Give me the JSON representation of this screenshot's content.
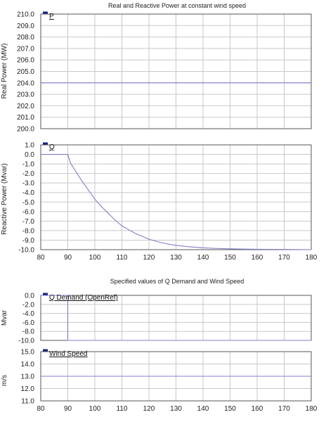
{
  "figure_titles": {
    "top": "Real and Reactive Power at constant wind speed",
    "bottom": "Specified values of Q Demand and Wind Speed"
  },
  "chart_data": [
    {
      "type": "line",
      "title": "Real and Reactive Power at constant wind speed",
      "xlabel": "",
      "ylabel": "Real Power (MW)",
      "xlim": [
        80,
        180
      ],
      "ylim": [
        200.0,
        210.0
      ],
      "y_ticks": [
        "210.0",
        "209.0",
        "208.0",
        "207.0",
        "206.0",
        "205.0",
        "204.0",
        "203.0",
        "202.0",
        "201.0",
        "200.0"
      ],
      "x_ticks": [],
      "grid": true,
      "legend": "top-left",
      "series": [
        {
          "name": "P",
          "color": "#7f7fc8",
          "legend_color": "#1a237e",
          "x": [
            80,
            180
          ],
          "y": [
            204.0,
            204.0
          ]
        }
      ]
    },
    {
      "type": "line",
      "title": "",
      "xlabel": "",
      "ylabel": "Reactive Power (Mvar)",
      "xlim": [
        80,
        180
      ],
      "ylim": [
        -10.5,
        1.0
      ],
      "y_ticks": [
        "1.0",
        "0.0",
        "-1.0",
        "-2.0",
        "-3.0",
        "-4.0",
        "-5.0",
        "-6.0",
        "-7.0",
        "-8.0",
        "-9.0",
        "-10.0"
      ],
      "x_ticks": [
        "80",
        "90",
        "100",
        "110",
        "120",
        "130",
        "140",
        "150",
        "160",
        "170",
        "180"
      ],
      "grid": true,
      "legend": "top-left",
      "series": [
        {
          "name": "Q",
          "color": "#7f7fc8",
          "legend_color": "#1a237e",
          "x": [
            80,
            90,
            91,
            93,
            95,
            97.5,
            100,
            102.5,
            105,
            107.5,
            110,
            112.5,
            115,
            117.5,
            120,
            125,
            130,
            135,
            140,
            145,
            150,
            155,
            160,
            170,
            180
          ],
          "y": [
            0.0,
            0.0,
            -0.9,
            -1.8,
            -2.7,
            -3.7,
            -4.7,
            -5.5,
            -6.2,
            -6.9,
            -7.5,
            -7.9,
            -8.3,
            -8.6,
            -8.9,
            -9.3,
            -9.55,
            -9.7,
            -9.8,
            -9.87,
            -9.91,
            -9.94,
            -9.96,
            -9.98,
            -10.0
          ]
        }
      ]
    },
    {
      "type": "line",
      "title": "Specified values of Q Demand and Wind Speed",
      "xlabel": "",
      "ylabel": "Mvar",
      "xlim": [
        80,
        180
      ],
      "ylim": [
        -10.0,
        0.0
      ],
      "y_ticks": [
        "0.0",
        "-2.0",
        "-4.0",
        "-6.0",
        "-8.0",
        "-10.0"
      ],
      "x_ticks": [],
      "grid": true,
      "legend": "top-left",
      "series": [
        {
          "name": "Q Demand (OpenRef)",
          "color": "#7f7fc8",
          "legend_color": "#1a237e",
          "x": [
            80,
            90,
            90,
            180
          ],
          "y": [
            0.0,
            0.0,
            -10.0,
            -10.0
          ]
        }
      ]
    },
    {
      "type": "line",
      "title": "",
      "xlabel": "",
      "ylabel": "m/s",
      "xlim": [
        80,
        180
      ],
      "ylim": [
        11.0,
        15.0
      ],
      "y_ticks": [
        "15.0",
        "14.0",
        "13.0",
        "12.0",
        "11.0"
      ],
      "x_ticks": [
        "80",
        "90",
        "100",
        "110",
        "120",
        "130",
        "140",
        "150",
        "160",
        "170",
        "180"
      ],
      "grid": true,
      "legend": "top-left",
      "series": [
        {
          "name": "Wind Speed",
          "color": "#7f7fc8",
          "legend_color": "#1a237e",
          "x": [
            80,
            180
          ],
          "y": [
            13.0,
            13.0
          ]
        }
      ]
    }
  ]
}
